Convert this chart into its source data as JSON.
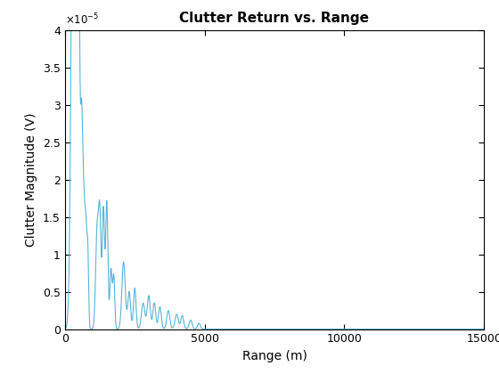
{
  "title": "Clutter Return vs. Range",
  "xlabel": "Range (m)",
  "ylabel": "Clutter Magnitude (V)",
  "xlim": [
    0,
    15000
  ],
  "ylim": [
    0,
    4e-05
  ],
  "line_color": "#5ab4d6",
  "background_color": "#ffffff",
  "ytick_values": [
    0,
    5e-06,
    1e-05,
    1.5e-05,
    2e-05,
    2.5e-05,
    3e-05,
    3.5e-05,
    4e-05
  ],
  "ytick_labels": [
    "0",
    "0.5",
    "1",
    "1.5",
    "2",
    "2.5",
    "3",
    "3.5",
    "4"
  ],
  "xtick_values": [
    0,
    5000,
    10000,
    15000
  ],
  "xtick_labels": [
    "0",
    "5000",
    "10000",
    "15000"
  ],
  "figsize": [
    5.6,
    4.2
  ],
  "dpi": 100
}
